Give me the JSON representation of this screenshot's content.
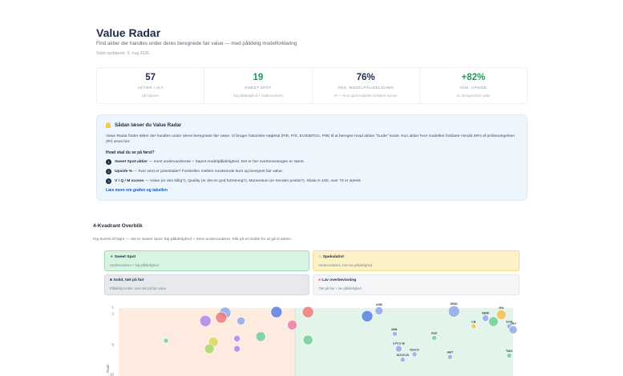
{
  "header": {
    "title": "Value Radar",
    "subtitle": "Find aktier der handles under deres beregnede fair value — med pålidelig modelforklaring",
    "updated": "Sidst opdateret: 9. maj 2026"
  },
  "stats": [
    {
      "value": "57",
      "label": "AKTIER I ALT",
      "sub": "på radaren",
      "color": "#1d2b4f"
    },
    {
      "value": "19",
      "label": "SWEET SPOT",
      "sub": "høj pålidelighed + undervurderet",
      "color": "#1f9d55"
    },
    {
      "value": "76%",
      "label": "GNS. MODELPÅLIDELIGHED",
      "sub": "R² — hvor godt modellen forklarer kursen",
      "color": "#1d2b4f"
    },
    {
      "value": "+82%",
      "label": "GNS. UPSIDE",
      "sub": "vs. beregnet fair value",
      "color": "#1f9d55"
    }
  ],
  "info": {
    "heading": "Sådan læser du Value Radar",
    "text": "Value Radar finder aktier der handles under deres beregnede fair value. Vi bruger historiske nøgletal (P/E, P/S, EV/EBITDA, P/B) til at beregne hvad aktien \"burde\" koste. Kun aktier hvor modellen forklarer mindst 60% af prisbevægelsen (R²) vises her.",
    "question": "Hvad skal du se på først?",
    "steps": [
      {
        "n": "1",
        "bold": "Sweet Spot-aktier",
        "text": " — mest undervurderede + højest modelpålidelighed. Det er her overbevisningen er størst."
      },
      {
        "n": "2",
        "bold": "Upside %",
        "text": " — hvor stort er potentialet? Forskellen mellem nuværende kurs og beregnet fair value."
      },
      {
        "n": "3",
        "bold": "V / Q / M scores",
        "text": " — Value (er den billig?), Quality (er det en god forretning?), Momentum (er trenden positiv?). Skala 0–100, over 70 er stærkt."
      }
    ],
    "more": "Læs mere om grafen og tabellen"
  },
  "section": {
    "title": "4-Kvadrant Overblik",
    "subtitle": "Kig øverst til højre — det er Sweet Spot: høj pålidelighed + mest undervurderet. Klik på en boble for at gå til aktien."
  },
  "quadrants": [
    {
      "title": "Sweet Spot",
      "sub": "Undervurderet + høj pålidelighed",
      "icon": "star-icon"
    },
    {
      "title": "Spekulativt",
      "sub": "Undervurderet, men lav pålidelighed",
      "icon": "warning-icon"
    },
    {
      "title": "Solid, tæt på fair",
      "sub": "Pålidelig model, men tæt på fair value",
      "icon": "shield-icon"
    },
    {
      "title": "Lav overbevisning",
      "sub": "Tæt på fair + lav pålidelighed",
      "icon": "pin-icon"
    }
  ],
  "chart_data": {
    "type": "scatter",
    "ylabel": "Rank",
    "y_ticks": [
      "1",
      "2",
      "5",
      "10"
    ],
    "ylim": [
      1,
      10
    ],
    "left_zone_color": "#fdebe0",
    "right_zone_color": "#e3f4ea",
    "points": [
      {
        "x": 0.27,
        "y": 0.07,
        "r": 7,
        "color": "#8fa8e8",
        "label": ""
      },
      {
        "x": 0.4,
        "y": 0.06,
        "r": 7,
        "color": "#5b7fe0",
        "label": ""
      },
      {
        "x": 0.48,
        "y": 0.06,
        "r": 7,
        "color": "#ef7b7b",
        "label": ""
      },
      {
        "x": 0.26,
        "y": 0.14,
        "r": 7,
        "color": "#ef7b7b",
        "label": ""
      },
      {
        "x": 0.22,
        "y": 0.19,
        "r": 7,
        "color": "#a989e8",
        "label": ""
      },
      {
        "x": 0.31,
        "y": 0.19,
        "r": 5,
        "color": "#8fa8e8",
        "label": ""
      },
      {
        "x": 0.44,
        "y": 0.25,
        "r": 6,
        "color": "#f07aa6",
        "label": ""
      },
      {
        "x": 0.63,
        "y": 0.12,
        "r": 7,
        "color": "#5b7fe0",
        "label": ""
      },
      {
        "x": 0.66,
        "y": 0.04,
        "r": 5,
        "color": "#8fa8e8",
        "label": "USB"
      },
      {
        "x": 0.85,
        "y": 0.05,
        "r": 7,
        "color": "#8fa8e8",
        "label": "WBD"
      },
      {
        "x": 0.97,
        "y": 0.1,
        "r": 6,
        "color": "#f2c14e",
        "label": "MA"
      },
      {
        "x": 0.93,
        "y": 0.15,
        "r": 4,
        "color": "#8fa8e8",
        "label": "BBM"
      },
      {
        "x": 0.95,
        "y": 0.2,
        "r": 6,
        "color": "#6fcf97",
        "label": ""
      },
      {
        "x": 0.9,
        "y": 0.27,
        "r": 3,
        "color": "#f2c14e",
        "label": "CB"
      },
      {
        "x": 0.99,
        "y": 0.27,
        "r": 3,
        "color": "#8fa8e8",
        "label": "SCP"
      },
      {
        "x": 1.0,
        "y": 0.32,
        "r": 5,
        "color": "#8fa8e8",
        "label": "JNJ"
      },
      {
        "x": 0.12,
        "y": 0.48,
        "r": 3,
        "color": "#6fcf97",
        "label": ""
      },
      {
        "x": 0.24,
        "y": 0.5,
        "r": 6,
        "color": "#d8d85a",
        "label": ""
      },
      {
        "x": 0.3,
        "y": 0.45,
        "r": 4,
        "color": "#a989e8",
        "label": ""
      },
      {
        "x": 0.36,
        "y": 0.42,
        "r": 6,
        "color": "#6fcf97",
        "label": ""
      },
      {
        "x": 0.48,
        "y": 0.47,
        "r": 6,
        "color": "#6fcf97",
        "label": ""
      },
      {
        "x": 0.23,
        "y": 0.6,
        "r": 6,
        "color": "#a8d86a",
        "label": ""
      },
      {
        "x": 0.3,
        "y": 0.6,
        "r": 4,
        "color": "#a989e8",
        "label": ""
      },
      {
        "x": 0.7,
        "y": 0.38,
        "r": 3,
        "color": "#8fa8e8",
        "label": "MHL"
      },
      {
        "x": 0.8,
        "y": 0.44,
        "r": 3,
        "color": "#6fcf97",
        "label": "FEP"
      },
      {
        "x": 0.71,
        "y": 0.6,
        "r": 4,
        "color": "#8fa8e8",
        "label": "LPCO-B"
      },
      {
        "x": 0.75,
        "y": 0.68,
        "r": 3,
        "color": "#8fa8e8",
        "label": "NOCO"
      },
      {
        "x": 0.84,
        "y": 0.72,
        "r": 3,
        "color": "#8fa8e8",
        "label": "ABT"
      },
      {
        "x": 0.72,
        "y": 0.76,
        "r": 3,
        "color": "#8fa8e8",
        "label": "NOVO-B"
      },
      {
        "x": 0.99,
        "y": 0.7,
        "r": 3,
        "color": "#6fcf97",
        "label": "TMO"
      }
    ]
  }
}
